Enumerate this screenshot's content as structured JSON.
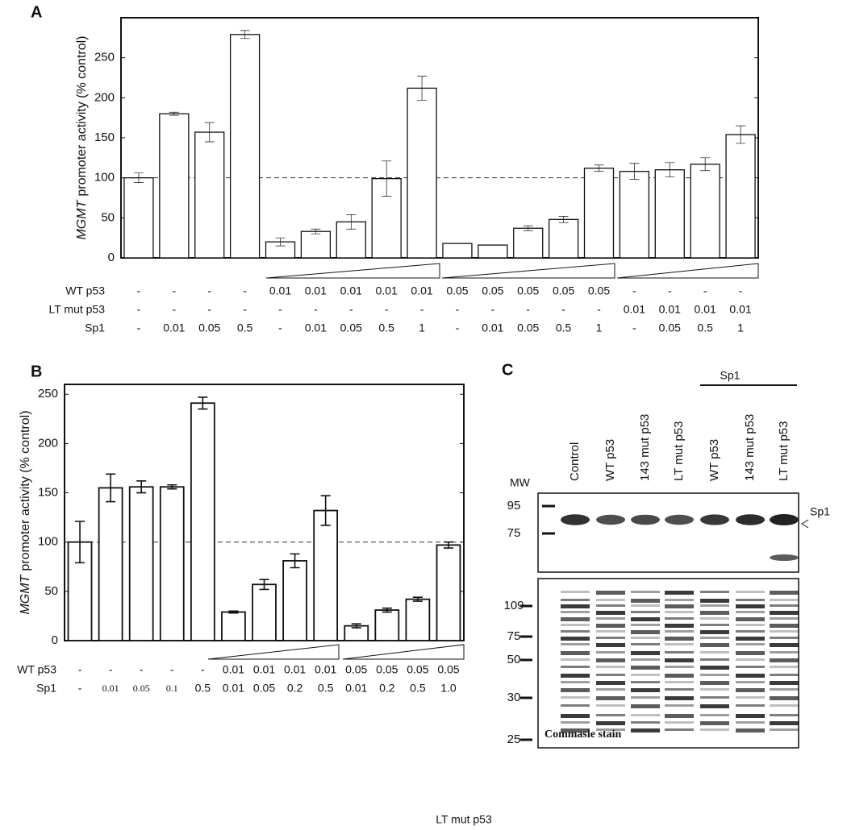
{
  "chart_data": [
    {
      "type": "bar",
      "label": "A",
      "ylabel_gene": "MGMT",
      "ylabel": "promoter activity (% control)",
      "values": [
        100,
        180,
        157,
        279,
        20,
        33,
        45,
        99,
        212,
        18,
        16,
        37,
        48,
        112,
        108,
        110,
        117,
        154
      ],
      "errors": [
        6,
        2,
        12,
        5,
        5,
        3,
        9,
        22,
        15,
        null,
        null,
        3,
        4,
        4,
        10,
        9,
        8,
        11
      ],
      "ylim": [
        0,
        300
      ],
      "yticks": [
        0,
        50,
        100,
        150,
        200,
        250
      ],
      "reference_line": 100,
      "color": "#ffffff",
      "condition_rows": [
        {
          "name": "WT p53",
          "values": [
            "-",
            "-",
            "-",
            "-",
            "0.01",
            "0.01",
            "0.01",
            "0.01",
            "0.01",
            "0.05",
            "0.05",
            "0.05",
            "0.05",
            "0.05",
            "-",
            "-",
            "-",
            "-"
          ]
        },
        {
          "name": "LT mut p53",
          "values": [
            "-",
            "-",
            "-",
            "-",
            "-",
            "-",
            "-",
            "-",
            "-",
            "-",
            "-",
            "-",
            "-",
            "-",
            "0.01",
            "0.01",
            "0.01",
            "0.01"
          ]
        },
        {
          "name": "Sp1",
          "values": [
            "-",
            "0.01",
            "0.05",
            "0.5",
            "-",
            "0.01",
            "0.05",
            "0.5",
            "1",
            "-",
            "0.01",
            "0.05",
            "0.5",
            "1",
            "-",
            "0.05",
            "0.5",
            "1"
          ]
        }
      ]
    },
    {
      "type": "bar",
      "label": "B",
      "ylabel_gene": "MGMT",
      "ylabel": "promoter activity (% control)",
      "values": [
        100,
        155,
        156,
        156,
        241,
        29,
        57,
        81,
        132,
        15,
        31,
        42,
        97
      ],
      "errors": [
        21,
        14,
        6,
        2,
        6,
        1,
        5,
        7,
        15,
        2,
        2,
        2,
        3
      ],
      "ylim": [
        0,
        260
      ],
      "yticks": [
        0,
        50,
        100,
        150,
        200,
        250
      ],
      "reference_line": 100,
      "color": "#ffffff",
      "condition_rows": [
        {
          "name": "WT p53",
          "values": [
            "-",
            "-",
            "-",
            "-",
            "-",
            "0.01",
            "0.01",
            "0.01",
            "0.01",
            "0.05",
            "0.05",
            "0.05",
            "0.05"
          ]
        },
        {
          "name": "Sp1",
          "values": [
            "-",
            "0.01",
            "0.05",
            "0.1",
            "0.5",
            "0.01",
            "0.05",
            "0.2",
            "0.5",
            "0.01",
            "0.2",
            "0.5",
            "1.0"
          ]
        }
      ]
    }
  ],
  "panel_c": {
    "label": "C",
    "group_label": "Sp1",
    "mw_label": "MW",
    "lanes": [
      "Control",
      "WT p53",
      "143 mut p53",
      "LT mut p53",
      "WT p53",
      "143 mut p53",
      "LT mut p53"
    ],
    "blot_markers": [
      "95",
      "75"
    ],
    "blot_band_label": "Sp1",
    "stain_markers": [
      "109",
      "75",
      "50",
      "30",
      "25"
    ],
    "stain_label": "Commasie stain"
  },
  "caption": "LT mut p53"
}
